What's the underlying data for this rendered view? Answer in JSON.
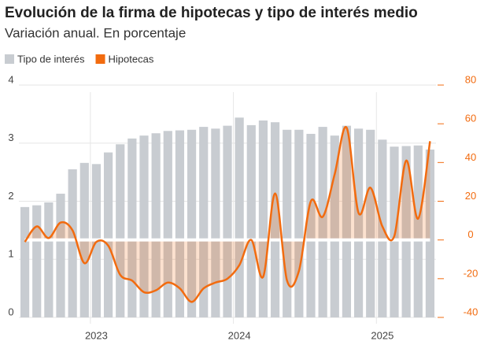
{
  "chart_data": {
    "type": "bar_line",
    "title": "Evolución de la firma de hipotecas y tipo de interés medio",
    "subtitle": "Variación anual. En porcentaje",
    "categories": [
      null,
      null,
      null,
      null,
      null,
      null,
      "2023",
      null,
      null,
      null,
      null,
      null,
      null,
      null,
      null,
      null,
      null,
      null,
      "2024",
      null,
      null,
      null,
      null,
      null,
      null,
      null,
      null,
      null,
      null,
      null,
      "2025",
      null,
      null,
      null,
      null
    ],
    "series": [
      {
        "name": "Tipo de interés",
        "color": "#c8ccd1",
        "kind": "bar",
        "axis": "y",
        "values": [
          1.9,
          1.93,
          1.98,
          2.13,
          2.55,
          2.66,
          2.64,
          2.84,
          2.98,
          3.08,
          3.13,
          3.17,
          3.21,
          3.22,
          3.23,
          3.28,
          3.25,
          3.3,
          3.44,
          3.31,
          3.39,
          3.36,
          3.23,
          3.23,
          3.16,
          3.28,
          3.13,
          3.3,
          3.25,
          3.23,
          3.06,
          2.94,
          2.95,
          2.96,
          2.89
        ]
      },
      {
        "name": "Hipotecas",
        "color": "#f26b0f",
        "kind": "line",
        "axis": "y2",
        "values": [
          -1,
          7,
          1,
          9,
          5,
          -12,
          -1,
          -3,
          -18,
          -21,
          -27,
          -26,
          -22,
          -25,
          -32,
          -25,
          -22,
          -20,
          -13,
          0,
          -19,
          24,
          -21,
          -16,
          20,
          12,
          34,
          58,
          14,
          27,
          7,
          2,
          41,
          11,
          51
        ]
      }
    ],
    "ylim": [
      0,
      4
    ],
    "yticks": [
      0,
      1,
      2,
      3,
      4
    ],
    "y2lim": [
      -40,
      80
    ],
    "y2ticks": [
      -40,
      -20,
      0,
      20,
      40,
      60,
      80
    ],
    "grid": true
  }
}
